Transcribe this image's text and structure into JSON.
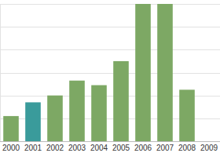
{
  "chart_data": {
    "type": "bar",
    "categories": [
      "2000",
      "2001",
      "2002",
      "2003",
      "2004",
      "2005",
      "2006",
      "2007",
      "2008",
      "2009"
    ],
    "values": [
      1.1,
      1.7,
      2.0,
      2.65,
      2.45,
      3.5,
      6.0,
      6.0,
      2.25,
      0
    ],
    "colors": [
      "#7da864",
      "#3a9b9b",
      "#7da864",
      "#7da864",
      "#7da864",
      "#7da864",
      "#7da864",
      "#7da864",
      "#7da864",
      "#7da864"
    ],
    "ylim": [
      0,
      6
    ],
    "yticks": [
      0,
      1,
      2,
      3,
      4,
      5,
      6
    ],
    "grid": true,
    "tick_labels": "x"
  }
}
